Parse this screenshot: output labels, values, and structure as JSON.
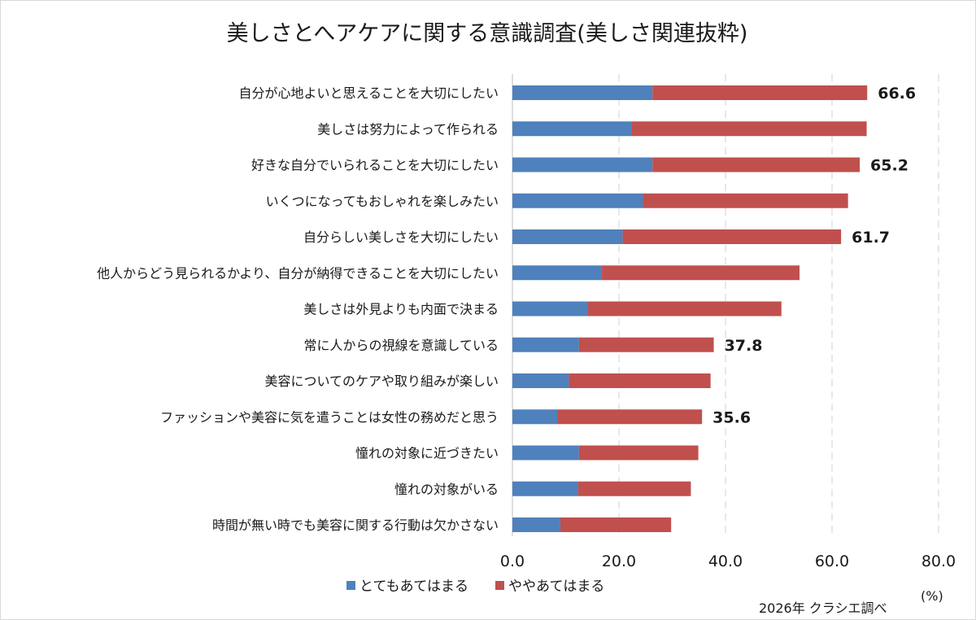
{
  "chart_data": {
    "type": "bar",
    "orientation": "horizontal",
    "stacked": true,
    "title": "美しさとへアケアに関する意識調査(美しさ関連抜粋)",
    "categories": [
      "自分が心地よいと思えることを大切にしたい",
      "美しさは努力によって作られる",
      "好きな自分でいられることを大切にしたい",
      "いくつになってもおしゃれを楽しみたい",
      "自分らしい美しさを大切にしたい",
      "他人からどう見られるかより、自分が納得できることを大切にしたい",
      "美しさは外見よりも内面で決まる",
      "常に人からの視線を意識している",
      "美容についてのケアや取り組みが楽しい",
      "ファッションや美容に気を遣うことは女性の務めだと思う",
      "憧れの対象に近づきたい",
      "憧れの対象がいる",
      "時間が無い時でも美容に関する行動は欠かさない"
    ],
    "series": [
      {
        "name": "とてもあてはまる",
        "color": "#4f81bd",
        "values": [
          26.3,
          22.3,
          26.3,
          24.5,
          20.7,
          16.8,
          14.2,
          12.5,
          10.6,
          8.4,
          12.5,
          12.3,
          9.0
        ]
      },
      {
        "name": "ややあてはまる",
        "color": "#c0504d",
        "values": [
          40.3,
          44.2,
          38.9,
          38.5,
          41.0,
          37.1,
          36.3,
          25.3,
          26.6,
          27.2,
          22.4,
          21.2,
          20.8
        ]
      }
    ],
    "data_labels": [
      {
        "index": 0,
        "text": "66.6"
      },
      {
        "index": 2,
        "text": "65.2"
      },
      {
        "index": 4,
        "text": "61.7"
      },
      {
        "index": 7,
        "text": "37.8"
      },
      {
        "index": 9,
        "text": "35.6"
      }
    ],
    "xlim": [
      0,
      80
    ],
    "xticks": [
      "0.0",
      "20.0",
      "40.0",
      "60.0",
      "80.0"
    ],
    "unit_label": "(%)",
    "grid": "vertical-dashed",
    "legend_position": "bottom-left",
    "source": "2026年 クラシエ調べ"
  }
}
